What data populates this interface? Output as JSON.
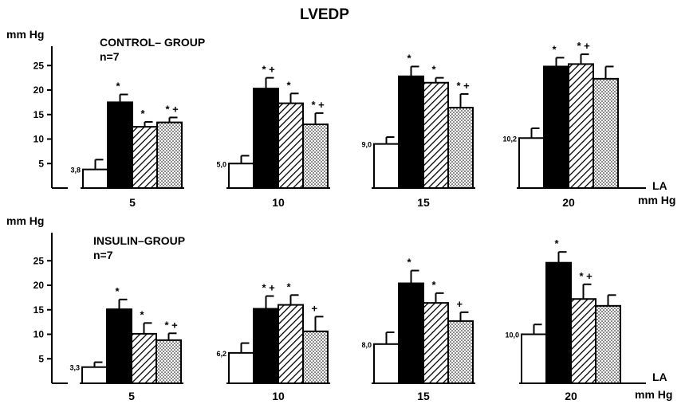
{
  "chart_data": {
    "type": "bar",
    "title": "LVEDP",
    "x_axis_label_line1": "LA",
    "x_axis_label_line2": "mm Hg",
    "panels": [
      {
        "ylabel": "mm Hg",
        "group_title": "CONTROL– GROUP",
        "n_label": "n=7",
        "ylim": [
          0,
          27
        ],
        "yticks": [
          5,
          10,
          15,
          20,
          25
        ],
        "categories": [
          "5",
          "10",
          "15",
          "20"
        ],
        "series": [
          {
            "pattern": "white",
            "values": [
              3.8,
              5.0,
              9.0,
              10.2
            ],
            "errors": [
              2.0,
              1.6,
              1.4,
              2.0
            ],
            "markers": [
              "",
              "",
              "",
              ""
            ]
          },
          {
            "pattern": "black",
            "values": [
              17.5,
              20.3,
              22.8,
              24.8
            ],
            "errors": [
              1.6,
              2.2,
              2.0,
              1.8
            ],
            "markers": [
              "*",
              "* +",
              "*",
              "*"
            ]
          },
          {
            "pattern": "hatched",
            "values": [
              12.5,
              17.3,
              21.5,
              25.3
            ],
            "errors": [
              1.0,
              2.0,
              1.0,
              2.0
            ],
            "markers": [
              "*",
              "*",
              "*",
              "* +"
            ]
          },
          {
            "pattern": "dotted",
            "values": [
              13.4,
              13.0,
              16.4,
              22.3
            ],
            "errors": [
              1.0,
              2.3,
              2.8,
              2.5
            ],
            "markers": [
              "* +",
              "* +",
              "* +",
              ""
            ]
          }
        ],
        "value_labels": [
          "3,8",
          "5,0",
          "9,0",
          "10,2"
        ]
      },
      {
        "ylabel": "mm Hg",
        "group_title": "INSULIN–GROUP",
        "n_label": "n=7",
        "ylim": [
          0,
          27
        ],
        "yticks": [
          5,
          10,
          15,
          20,
          25
        ],
        "categories": [
          "5",
          "10",
          "15",
          "20"
        ],
        "series": [
          {
            "pattern": "white",
            "values": [
              3.3,
              6.2,
              8.0,
              10.0
            ],
            "errors": [
              1.0,
              2.0,
              2.4,
              2.0
            ],
            "markers": [
              "",
              "",
              "",
              ""
            ]
          },
          {
            "pattern": "black",
            "values": [
              15.1,
              15.2,
              20.4,
              24.6
            ],
            "errors": [
              2.0,
              2.6,
              2.6,
              2.2
            ],
            "markers": [
              "*",
              "* +",
              "*",
              "*"
            ]
          },
          {
            "pattern": "hatched",
            "values": [
              10.1,
              16.0,
              16.4,
              17.2
            ],
            "errors": [
              2.2,
              2.0,
              2.0,
              3.0
            ],
            "markers": [
              "*",
              "*",
              "*",
              "* +"
            ]
          },
          {
            "pattern": "dotted",
            "values": [
              8.8,
              10.6,
              12.7,
              15.8
            ],
            "errors": [
              1.4,
              3.0,
              1.8,
              2.2
            ],
            "markers": [
              "* +",
              "+",
              "+",
              ""
            ]
          }
        ],
        "value_labels": [
          "3,3",
          "6,2",
          "8,0",
          "10,0"
        ]
      }
    ]
  }
}
